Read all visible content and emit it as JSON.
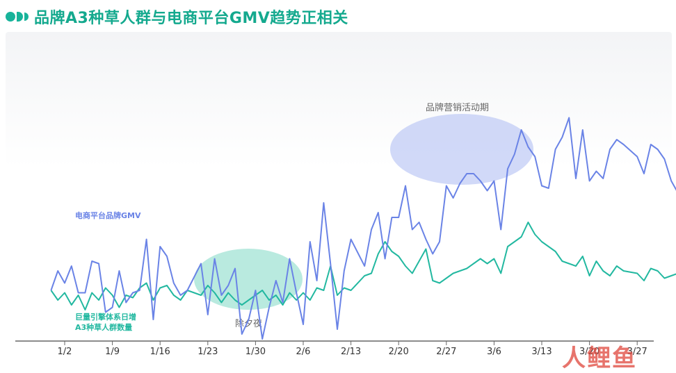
{
  "header": {
    "title": "品牌A3种草人群与电商平台GMV趋势正相关"
  },
  "watermark": "人鲤鱼",
  "colors": {
    "accent": "#17b39a",
    "gmv_line": "#6a83e6",
    "a3_line": "#22b8a0"
  },
  "chart_data": {
    "type": "line",
    "title": "品牌A3种草人群与电商平台GMV趋势正相关",
    "xlabel": "",
    "ylabel": "",
    "grid": false,
    "x_ticks": [
      "1/2",
      "1/9",
      "1/16",
      "1/23",
      "1/30",
      "2/6",
      "2/13",
      "2/20",
      "2/27",
      "3/6",
      "3/13",
      "3/20",
      "3/27"
    ],
    "series": [
      {
        "name": "电商平台品牌GMV",
        "color": "#6a83e6",
        "points": [
          [
            -2,
            -8
          ],
          [
            -1,
            0
          ],
          [
            0,
            -5
          ],
          [
            1,
            2
          ],
          [
            2,
            -9
          ],
          [
            3,
            -9
          ],
          [
            4,
            4
          ],
          [
            5,
            3
          ],
          [
            6,
            -17
          ],
          [
            7,
            -15
          ],
          [
            8,
            0
          ],
          [
            9,
            -13
          ],
          [
            10,
            -9
          ],
          [
            11,
            -8
          ],
          [
            12,
            13
          ],
          [
            13,
            -20
          ],
          [
            14,
            10
          ],
          [
            15,
            6
          ],
          [
            16,
            -5
          ],
          [
            17,
            -10
          ],
          [
            18,
            -8
          ],
          [
            20,
            3
          ],
          [
            21,
            -18
          ],
          [
            22,
            5
          ],
          [
            23,
            -10
          ],
          [
            24,
            -6
          ],
          [
            25,
            1
          ],
          [
            26,
            -26
          ],
          [
            27,
            -20
          ],
          [
            28,
            -8
          ],
          [
            29,
            -28
          ],
          [
            30,
            -15
          ],
          [
            31,
            -4
          ],
          [
            32,
            -13
          ],
          [
            33,
            5
          ],
          [
            34,
            -9
          ],
          [
            35,
            -22
          ],
          [
            36,
            12
          ],
          [
            37,
            -4
          ],
          [
            38,
            28
          ],
          [
            39,
            3
          ],
          [
            40,
            -24
          ],
          [
            41,
            0
          ],
          [
            42,
            13
          ],
          [
            44,
            2
          ],
          [
            45,
            17
          ],
          [
            46,
            24
          ],
          [
            47,
            5
          ],
          [
            48,
            22
          ],
          [
            49,
            22
          ],
          [
            50,
            35
          ],
          [
            51,
            17
          ],
          [
            52,
            20
          ],
          [
            53,
            13
          ],
          [
            54,
            7
          ],
          [
            55,
            12
          ],
          [
            56,
            35
          ],
          [
            57,
            30
          ],
          [
            58,
            36
          ],
          [
            59,
            40
          ],
          [
            60,
            40
          ],
          [
            61,
            37
          ],
          [
            62,
            33
          ],
          [
            63,
            37
          ],
          [
            64,
            17
          ],
          [
            65,
            42
          ],
          [
            66,
            48
          ],
          [
            67,
            58
          ],
          [
            68,
            51
          ],
          [
            69,
            47
          ],
          [
            70,
            35
          ],
          [
            71,
            34
          ],
          [
            72,
            50
          ],
          [
            73,
            55
          ],
          [
            74,
            63
          ],
          [
            75,
            38
          ],
          [
            76,
            58
          ],
          [
            77,
            37
          ],
          [
            78,
            41
          ],
          [
            79,
            38
          ],
          [
            80,
            50
          ],
          [
            81,
            54
          ],
          [
            82,
            52
          ],
          [
            84,
            47
          ],
          [
            85,
            40
          ],
          [
            86,
            52
          ],
          [
            87,
            50
          ],
          [
            88,
            46
          ],
          [
            89,
            37
          ],
          [
            90,
            32
          ],
          [
            91,
            48
          ],
          [
            92,
            46
          ],
          [
            93,
            61
          ],
          [
            94,
            52
          ],
          [
            95,
            54
          ],
          [
            96,
            40
          ],
          [
            97,
            47
          ],
          [
            98,
            66
          ],
          [
            99,
            44
          ],
          [
            100,
            43
          ],
          [
            101,
            42
          ],
          [
            102,
            33
          ],
          [
            103,
            34
          ],
          [
            104,
            31
          ],
          [
            105,
            37
          ],
          [
            106,
            21
          ],
          [
            107,
            28
          ],
          [
            109,
            25
          ],
          [
            110,
            15
          ],
          [
            111,
            11
          ],
          [
            112,
            20
          ],
          [
            113,
            15
          ],
          [
            114,
            28
          ],
          [
            115,
            20
          ],
          [
            116,
            16
          ],
          [
            117,
            12
          ],
          [
            118,
            11
          ],
          [
            119,
            24
          ],
          [
            121,
            20
          ],
          [
            122,
            28
          ],
          [
            123,
            27
          ],
          [
            124,
            39
          ],
          [
            125,
            30
          ],
          [
            126,
            27
          ],
          [
            127,
            28
          ],
          [
            128,
            15
          ],
          [
            129,
            21
          ],
          [
            130,
            17
          ],
          [
            131,
            21
          ],
          [
            132,
            26
          ],
          [
            133,
            14
          ],
          [
            134,
            19
          ],
          [
            135,
            20
          ],
          [
            136,
            14
          ],
          [
            137,
            17
          ]
        ]
      },
      {
        "name": "巨量引擎体系日增A3种草人群数量",
        "color": "#22b8a0",
        "points": [
          [
            -2,
            -8
          ],
          [
            -1,
            -12
          ],
          [
            0,
            -9
          ],
          [
            1,
            -14
          ],
          [
            2,
            -10
          ],
          [
            3,
            -16
          ],
          [
            4,
            -9
          ],
          [
            5,
            -12
          ],
          [
            6,
            -7
          ],
          [
            7,
            -10
          ],
          [
            8,
            -15
          ],
          [
            9,
            -10
          ],
          [
            10,
            -11
          ],
          [
            11,
            -7
          ],
          [
            12,
            -5
          ],
          [
            13,
            -12
          ],
          [
            14,
            -7
          ],
          [
            15,
            -6
          ],
          [
            16,
            -10
          ],
          [
            17,
            -12
          ],
          [
            18,
            -8
          ],
          [
            20,
            -10
          ],
          [
            21,
            -6
          ],
          [
            22,
            -9
          ],
          [
            23,
            -13
          ],
          [
            24,
            -9
          ],
          [
            25,
            -12
          ],
          [
            26,
            -14
          ],
          [
            27,
            -12
          ],
          [
            28,
            -10
          ],
          [
            29,
            -8
          ],
          [
            30,
            -12
          ],
          [
            31,
            -10
          ],
          [
            32,
            -14
          ],
          [
            33,
            -9
          ],
          [
            34,
            -12
          ],
          [
            35,
            -9
          ],
          [
            36,
            -12
          ],
          [
            37,
            -7
          ],
          [
            38,
            -8
          ],
          [
            39,
            2
          ],
          [
            40,
            -10
          ],
          [
            41,
            -7
          ],
          [
            42,
            -8
          ],
          [
            44,
            -2
          ],
          [
            45,
            -1
          ],
          [
            46,
            7
          ],
          [
            47,
            12
          ],
          [
            48,
            8
          ],
          [
            49,
            6
          ],
          [
            50,
            2
          ],
          [
            51,
            -1
          ],
          [
            52,
            4
          ],
          [
            53,
            9
          ],
          [
            54,
            -4
          ],
          [
            55,
            -5
          ],
          [
            56,
            -3
          ],
          [
            57,
            -1
          ],
          [
            58,
            0
          ],
          [
            59,
            1
          ],
          [
            60,
            3
          ],
          [
            61,
            5
          ],
          [
            62,
            3
          ],
          [
            63,
            5
          ],
          [
            64,
            -1
          ],
          [
            65,
            10
          ],
          [
            66,
            12
          ],
          [
            67,
            14
          ],
          [
            68,
            20
          ],
          [
            69,
            15
          ],
          [
            70,
            12
          ],
          [
            71,
            10
          ],
          [
            72,
            8
          ],
          [
            73,
            4
          ],
          [
            74,
            3
          ],
          [
            75,
            2
          ],
          [
            76,
            6
          ],
          [
            77,
            -2
          ],
          [
            78,
            4
          ],
          [
            79,
            0
          ],
          [
            80,
            -2
          ],
          [
            81,
            2
          ],
          [
            82,
            0
          ],
          [
            84,
            -1
          ],
          [
            85,
            -4
          ],
          [
            86,
            1
          ],
          [
            87,
            0
          ],
          [
            88,
            -3
          ],
          [
            89,
            -2
          ],
          [
            90,
            -1
          ],
          [
            91,
            -5
          ],
          [
            92,
            -4
          ],
          [
            93,
            -2
          ],
          [
            94,
            0
          ],
          [
            95,
            -4
          ],
          [
            96,
            -2
          ],
          [
            97,
            2
          ],
          [
            98,
            -1
          ],
          [
            99,
            1
          ],
          [
            100,
            -5
          ],
          [
            101,
            -2
          ],
          [
            102,
            0
          ],
          [
            103,
            3
          ],
          [
            104,
            -8
          ],
          [
            105,
            -3
          ],
          [
            106,
            -4
          ],
          [
            107,
            -6
          ],
          [
            109,
            -5
          ],
          [
            110,
            -6
          ],
          [
            111,
            -10
          ],
          [
            112,
            -8
          ],
          [
            113,
            -9
          ],
          [
            114,
            -6
          ],
          [
            115,
            -8
          ],
          [
            116,
            -7
          ],
          [
            117,
            -5
          ],
          [
            118,
            -9
          ],
          [
            119,
            -8
          ],
          [
            121,
            -7
          ],
          [
            122,
            -6
          ],
          [
            123,
            -5
          ],
          [
            124,
            -8
          ],
          [
            125,
            -4
          ],
          [
            126,
            -6
          ],
          [
            127,
            -3
          ],
          [
            128,
            -5
          ],
          [
            129,
            -9
          ],
          [
            130,
            -6
          ],
          [
            131,
            -5
          ],
          [
            132,
            -8
          ],
          [
            133,
            -6
          ],
          [
            134,
            -7
          ],
          [
            135,
            -9
          ],
          [
            136,
            -8
          ],
          [
            137,
            -11
          ]
        ]
      }
    ],
    "annotations": [
      {
        "text": "除夕夜",
        "color": "#20b89c"
      },
      {
        "text": "品牌营销活动期",
        "color": "#6a83e6"
      }
    ]
  }
}
